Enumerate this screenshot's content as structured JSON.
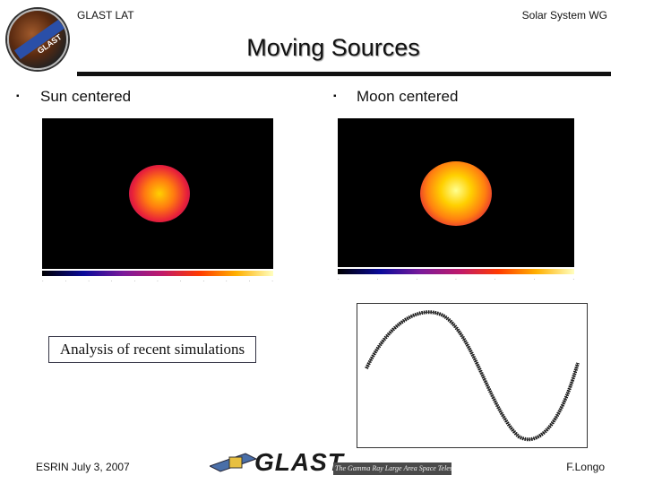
{
  "header": {
    "left_label": "GLAST LAT",
    "right_label": "Solar System WG",
    "logo_icon": "glast-mission-patch-icon"
  },
  "slide": {
    "title": "Moving Sources",
    "left_bullet": "Sun centered",
    "right_bullet": "Moon centered",
    "caption": "Analysis of recent simulations",
    "bullet_icon": "square-bullet-icon"
  },
  "footer": {
    "left": "ESRIN July 3, 2007",
    "right": "F.Longo",
    "brand": "GLAST",
    "brand_tagline": "The Gamma Ray Large Area Space Telescope"
  },
  "colors": {
    "text": "#111111",
    "rule": "#111111",
    "map_background": "#000000",
    "caption_border": "#334455"
  }
}
